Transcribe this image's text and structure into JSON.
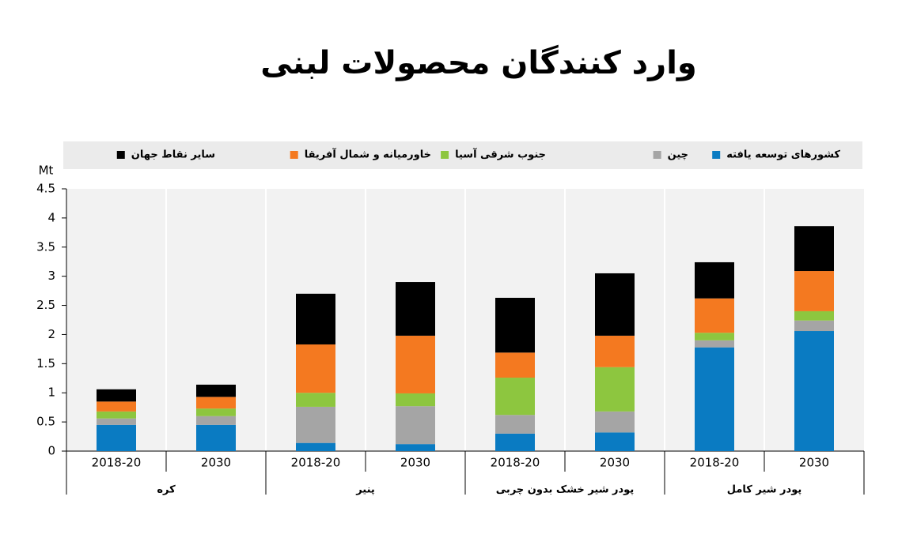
{
  "chart_data": {
    "type": "stacked-bar",
    "title": "وارد کنندگان محصولات لبنی",
    "y_unit": "Mt",
    "categories": [
      "2018-20",
      "2030",
      "2018-20",
      "2030",
      "2018-20",
      "2030",
      "2018-20",
      "2030"
    ],
    "groups": [
      "کره",
      "پنیر",
      "پودر شیر خشک بدون چربی",
      "پودر شیر کامل"
    ],
    "series": [
      {
        "name": "کشورهای توسعه یافته",
        "color": "#0a7bc2",
        "values": [
          0.45,
          0.45,
          0.14,
          0.12,
          0.3,
          0.32,
          1.78,
          2.06
        ]
      },
      {
        "name": "چین",
        "color": "#a5a5a5",
        "values": [
          0.11,
          0.15,
          0.62,
          0.65,
          0.32,
          0.36,
          0.12,
          0.18
        ]
      },
      {
        "name": "جنوب شرقی آسیا",
        "color": "#8dc63f",
        "values": [
          0.12,
          0.13,
          0.24,
          0.22,
          0.64,
          0.76,
          0.13,
          0.16
        ]
      },
      {
        "name": "خاورمیانه و شمال آفریقا",
        "color": "#f47920",
        "values": [
          0.17,
          0.2,
          0.83,
          0.99,
          0.43,
          0.54,
          0.59,
          0.69
        ]
      },
      {
        "name": "سایر نقاط جهان",
        "color": "#000000",
        "values": [
          0.21,
          0.21,
          0.87,
          0.92,
          0.94,
          1.07,
          0.62,
          0.77
        ]
      }
    ],
    "ylim": [
      0,
      4.5
    ],
    "yticks": [
      0,
      0.5,
      1,
      1.5,
      2,
      2.5,
      3,
      3.5,
      4,
      4.5
    ]
  }
}
